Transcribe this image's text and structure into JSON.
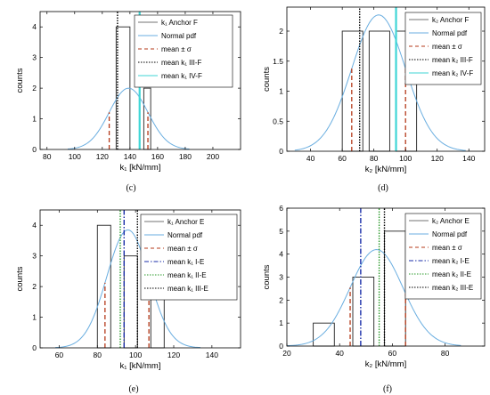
{
  "chart_data": [
    {
      "type": "bar",
      "panel": "c",
      "caption": "(c)",
      "xlabel": "k₁ [kN/mm]",
      "ylabel": "counts",
      "xlim": [
        75,
        220
      ],
      "ylim": [
        0,
        4.5
      ],
      "xticks": [
        80,
        100,
        120,
        140,
        160,
        180,
        200
      ],
      "yticks": [
        0,
        1,
        2,
        3,
        4
      ],
      "bins": [
        {
          "x0": 130,
          "x1": 140,
          "count": 4
        },
        {
          "x0": 140,
          "x1": 150,
          "count": 0
        },
        {
          "x0": 150,
          "x1": 155,
          "count": 2
        }
      ],
      "pdf": {
        "mean": 139,
        "sd": 14,
        "peak": 2.0,
        "range": [
          95,
          183
        ]
      },
      "lines": [
        {
          "kind": "sigma",
          "x": 125
        },
        {
          "kind": "sigma",
          "x": 153
        },
        {
          "kind": "mean-a",
          "x": 131
        },
        {
          "kind": "mean-b",
          "x": 147
        }
      ],
      "legend": [
        {
          "key": "hist",
          "label": "k₁ Anchor F"
        },
        {
          "key": "pdf",
          "label": "Normal pdf"
        },
        {
          "key": "sigma",
          "label": "mean ± σ"
        },
        {
          "key": "mean-a",
          "label": "mean k₁ III-F"
        },
        {
          "key": "mean-b",
          "label": "mean k₁ IV-F"
        }
      ],
      "colors": {
        "hist": "#222222",
        "pdf": "#6aaee0",
        "sigma": "#b53a1a",
        "mean-a": "#000000",
        "mean-b": "#3fd6d6"
      }
    },
    {
      "type": "bar",
      "panel": "d",
      "caption": "(d)",
      "xlabel": "k₂ [kN/mm]",
      "ylabel": "counts",
      "xlim": [
        25,
        150
      ],
      "ylim": [
        0,
        2.4
      ],
      "xticks": [
        40,
        60,
        80,
        100,
        120,
        140
      ],
      "yticks": [
        0,
        0.5,
        1,
        1.5,
        2
      ],
      "bins": [
        {
          "x0": 60,
          "x1": 73,
          "count": 2
        },
        {
          "x0": 77,
          "x1": 90,
          "count": 2
        },
        {
          "x0": 94,
          "x1": 107,
          "count": 2
        }
      ],
      "pdf": {
        "mean": 83,
        "sd": 17,
        "peak": 2.27,
        "range": [
          30,
          138
        ]
      },
      "lines": [
        {
          "kind": "sigma",
          "x": 66
        },
        {
          "kind": "sigma",
          "x": 100
        },
        {
          "kind": "mean-a",
          "x": 71
        },
        {
          "kind": "mean-b",
          "x": 94
        }
      ],
      "legend": [
        {
          "key": "hist",
          "label": "k₂ Anchor F"
        },
        {
          "key": "pdf",
          "label": "Normal pdf"
        },
        {
          "key": "sigma",
          "label": "mean ± σ"
        },
        {
          "key": "mean-a",
          "label": "mean k₂ III-F"
        },
        {
          "key": "mean-b",
          "label": "mean k₂ IV-F"
        }
      ],
      "colors": {
        "hist": "#222222",
        "pdf": "#6aaee0",
        "sigma": "#b53a1a",
        "mean-a": "#000000",
        "mean-b": "#3fd6d6"
      }
    },
    {
      "type": "bar",
      "panel": "e",
      "caption": "(e)",
      "xlabel": "k₁ [kN/mm]",
      "ylabel": "counts",
      "xlim": [
        50,
        155
      ],
      "ylim": [
        0,
        4.5
      ],
      "xticks": [
        60,
        80,
        100,
        120,
        140
      ],
      "yticks": [
        0,
        1,
        2,
        3,
        4
      ],
      "bins": [
        {
          "x0": 80,
          "x1": 87,
          "count": 4
        },
        {
          "x0": 87,
          "x1": 94,
          "count": 0
        },
        {
          "x0": 94,
          "x1": 101,
          "count": 3
        },
        {
          "x0": 101,
          "x1": 108,
          "count": 0
        },
        {
          "x0": 108,
          "x1": 115,
          "count": 2
        }
      ],
      "pdf": {
        "mean": 96,
        "sd": 11,
        "peak": 3.85,
        "range": [
          58,
          134
        ]
      },
      "lines": [
        {
          "kind": "sigma",
          "x": 84
        },
        {
          "kind": "sigma",
          "x": 107
        },
        {
          "kind": "mean-a",
          "x": 94
        },
        {
          "kind": "mean-b",
          "x": 92
        },
        {
          "kind": "mean-c",
          "x": 101
        }
      ],
      "legend": [
        {
          "key": "hist",
          "label": "k₁ Anchor E"
        },
        {
          "key": "pdf",
          "label": "Normal pdf"
        },
        {
          "key": "sigma",
          "label": "mean ± σ"
        },
        {
          "key": "mean-a",
          "label": "mean k₁ I-E"
        },
        {
          "key": "mean-b",
          "label": "mean k₁ II-E"
        },
        {
          "key": "mean-c",
          "label": "mean k₁ III-E"
        }
      ],
      "colors": {
        "hist": "#222222",
        "pdf": "#6aaee0",
        "sigma": "#b53a1a",
        "mean-a": "#1a2ea8",
        "mean-b": "#2a9a2a",
        "mean-c": "#000000"
      }
    },
    {
      "type": "bar",
      "panel": "f",
      "caption": "(f)",
      "xlabel": "k₂ [kN/mm]",
      "ylabel": "counts",
      "xlim": [
        20,
        95
      ],
      "ylim": [
        0,
        6
      ],
      "xticks": [
        20,
        40,
        60,
        80
      ],
      "yticks": [
        0,
        1,
        2,
        3,
        4,
        5,
        6
      ],
      "bins": [
        {
          "x0": 30,
          "x1": 38,
          "count": 1
        },
        {
          "x0": 38,
          "x1": 45,
          "count": 0
        },
        {
          "x0": 45,
          "x1": 53,
          "count": 3
        },
        {
          "x0": 53,
          "x1": 57,
          "count": 0
        },
        {
          "x0": 57,
          "x1": 65,
          "count": 5
        }
      ],
      "pdf": {
        "mean": 54,
        "sd": 10,
        "peak": 4.2,
        "range": [
          20,
          86
        ]
      },
      "lines": [
        {
          "kind": "sigma",
          "x": 44
        },
        {
          "kind": "sigma",
          "x": 65
        },
        {
          "kind": "mean-a",
          "x": 48
        },
        {
          "kind": "mean-b",
          "x": 55
        },
        {
          "kind": "mean-c",
          "x": 57
        }
      ],
      "legend": [
        {
          "key": "hist",
          "label": "k₂ Anchor E"
        },
        {
          "key": "pdf",
          "label": "Normal pdf"
        },
        {
          "key": "sigma",
          "label": "mean ± σ"
        },
        {
          "key": "mean-a",
          "label": "mean k₂ I-E"
        },
        {
          "key": "mean-b",
          "label": "mean k₂ II-E"
        },
        {
          "key": "mean-c",
          "label": "mean k₂ III-E"
        }
      ],
      "colors": {
        "hist": "#222222",
        "pdf": "#6aaee0",
        "sigma": "#b53a1a",
        "mean-a": "#1a2ea8",
        "mean-b": "#2a9a2a",
        "mean-c": "#000000"
      }
    }
  ]
}
